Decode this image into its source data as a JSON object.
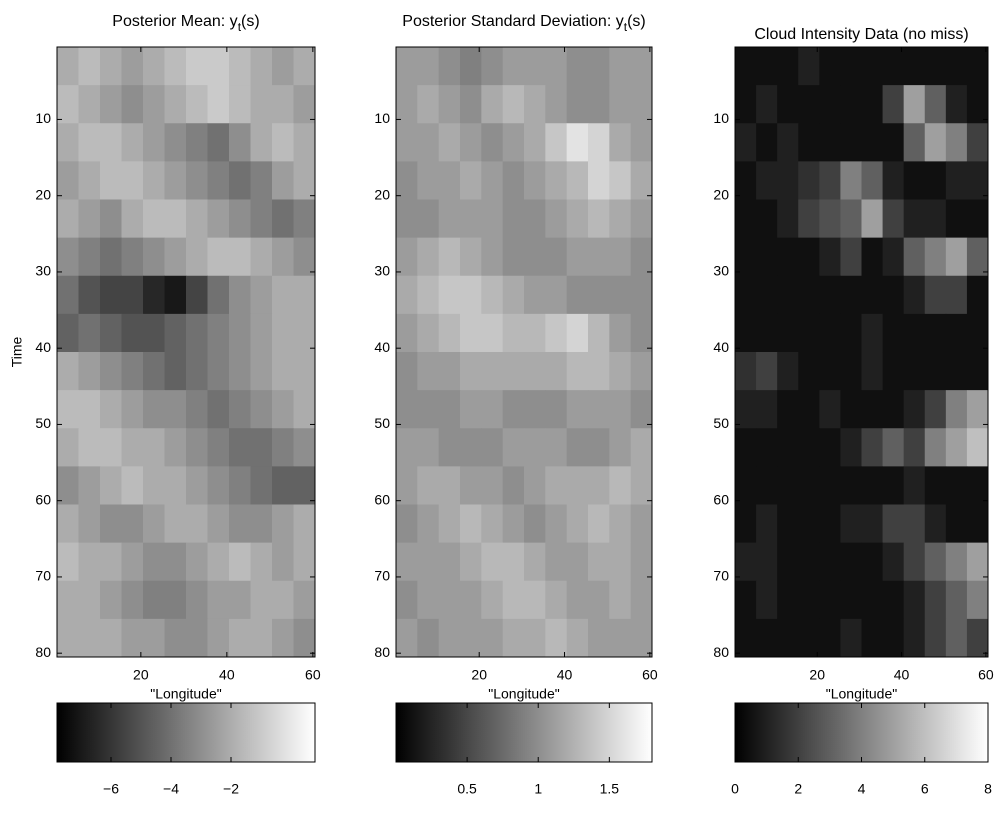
{
  "chart_data": [
    {
      "type": "heatmap",
      "title": "Posterior Mean: y",
      "title_subscript": "t",
      "title_suffix": "(s)",
      "xlabel": "\"Longitude\"",
      "ylabel": "Time",
      "colormap": "gray",
      "x": [
        3,
        8,
        13,
        18,
        23,
        28,
        33,
        38,
        43,
        48,
        53,
        58
      ],
      "y": [
        3,
        8,
        13,
        18,
        23,
        28,
        33,
        38,
        43,
        48,
        53,
        58,
        63,
        68,
        73,
        78
      ],
      "xlim": [
        0.5,
        60.5
      ],
      "ylim": [
        80.5,
        0.5
      ],
      "xticks": [
        20,
        40,
        60
      ],
      "yticks": [
        10,
        20,
        30,
        40,
        50,
        60,
        70,
        80
      ],
      "clim": [
        -7.8,
        0.8
      ],
      "cticks": [
        {
          "value": -6,
          "label": "−6"
        },
        {
          "value": -4,
          "label": "−4"
        },
        {
          "value": -2,
          "label": "−2"
        }
      ],
      "values": [
        [
          -2,
          -1.5,
          -2,
          -2.5,
          -2,
          -1.5,
          -1,
          -1,
          -1.5,
          -2,
          -2.5,
          -2
        ],
        [
          -1.5,
          -2,
          -2.5,
          -3,
          -2.5,
          -2,
          -1.5,
          -1,
          -1.5,
          -2,
          -2,
          -2.5
        ],
        [
          -2,
          -1.5,
          -1.5,
          -2,
          -2.5,
          -3,
          -3.5,
          -4,
          -3,
          -2,
          -1.5,
          -2
        ],
        [
          -2.5,
          -2,
          -1.5,
          -1.5,
          -2,
          -2.5,
          -3,
          -3.5,
          -4,
          -3.5,
          -2.5,
          -2
        ],
        [
          -2,
          -2.5,
          -3,
          -2,
          -1.5,
          -1.5,
          -2,
          -2.5,
          -3,
          -3.5,
          -4,
          -3.5
        ],
        [
          -3,
          -3.5,
          -4,
          -3.5,
          -3,
          -2.5,
          -2,
          -1.5,
          -1.5,
          -2,
          -2.5,
          -3
        ],
        [
          -4,
          -5,
          -5.5,
          -5.5,
          -6.5,
          -7,
          -5.5,
          -4,
          -3,
          -2.5,
          -2,
          -2
        ],
        [
          -4.5,
          -4,
          -4.5,
          -5,
          -5,
          -4.5,
          -4,
          -3.5,
          -3,
          -2.5,
          -2,
          -2
        ],
        [
          -2,
          -2.5,
          -3,
          -3.5,
          -4,
          -4.5,
          -4,
          -3.5,
          -3,
          -2.5,
          -2,
          -2
        ],
        [
          -1.5,
          -1.5,
          -2,
          -2.5,
          -3,
          -3,
          -3.5,
          -4,
          -3.5,
          -3,
          -2.5,
          -2
        ],
        [
          -2,
          -1.5,
          -1.5,
          -2,
          -2,
          -2.5,
          -3,
          -3.5,
          -4,
          -4,
          -3.5,
          -3
        ],
        [
          -3,
          -2.5,
          -2,
          -1.5,
          -2,
          -2,
          -2.5,
          -3,
          -3.5,
          -4,
          -4.5,
          -4.5
        ],
        [
          -2,
          -2.5,
          -3,
          -3,
          -2.5,
          -2,
          -2,
          -2.5,
          -3,
          -3,
          -2.5,
          -2
        ],
        [
          -1.5,
          -2,
          -2,
          -2.5,
          -3,
          -3,
          -2.5,
          -2,
          -1.5,
          -2,
          -2.5,
          -2
        ],
        [
          -2,
          -2,
          -2.5,
          -3,
          -3.5,
          -3.5,
          -3,
          -2.5,
          -2.5,
          -2,
          -2,
          -2.5
        ],
        [
          -2,
          -2,
          -2,
          -2.5,
          -2.5,
          -3,
          -3,
          -2.5,
          -2,
          -2,
          -2.5,
          -3
        ]
      ]
    },
    {
      "type": "heatmap",
      "title": "Posterior Standard Deviation: y",
      "title_subscript": "t",
      "title_suffix": "(s)",
      "xlabel": "\"Longitude\"",
      "colormap": "gray",
      "x": [
        3,
        8,
        13,
        18,
        23,
        28,
        33,
        38,
        43,
        48,
        53,
        58
      ],
      "y": [
        3,
        8,
        13,
        18,
        23,
        28,
        33,
        38,
        43,
        48,
        53,
        58,
        63,
        68,
        73,
        78
      ],
      "xlim": [
        0.5,
        60.5
      ],
      "ylim": [
        80.5,
        0.5
      ],
      "xticks": [
        20,
        40,
        60
      ],
      "yticks": [
        10,
        20,
        30,
        40,
        50,
        60,
        70,
        80
      ],
      "clim": [
        0,
        1.8
      ],
      "cticks": [
        0.5,
        1,
        1.5
      ],
      "values": [
        [
          1.1,
          1.1,
          1.0,
          0.9,
          1.0,
          1.1,
          1.1,
          1.1,
          1.0,
          1.0,
          1.1,
          1.1
        ],
        [
          1.1,
          1.2,
          1.1,
          1.0,
          1.2,
          1.3,
          1.2,
          1.1,
          1.0,
          1.0,
          1.1,
          1.1
        ],
        [
          1.1,
          1.1,
          1.2,
          1.1,
          1.0,
          1.1,
          1.2,
          1.4,
          1.6,
          1.5,
          1.2,
          1.1
        ],
        [
          1.0,
          1.1,
          1.1,
          1.2,
          1.1,
          1.0,
          1.1,
          1.2,
          1.3,
          1.5,
          1.4,
          1.2
        ],
        [
          1.0,
          1.0,
          1.1,
          1.1,
          1.1,
          1.0,
          1.0,
          1.1,
          1.2,
          1.3,
          1.2,
          1.1
        ],
        [
          1.1,
          1.2,
          1.3,
          1.2,
          1.1,
          1.0,
          1.0,
          1.0,
          1.1,
          1.1,
          1.1,
          1.0
        ],
        [
          1.2,
          1.3,
          1.4,
          1.4,
          1.3,
          1.2,
          1.1,
          1.1,
          1.0,
          1.0,
          1.0,
          1.0
        ],
        [
          1.1,
          1.2,
          1.3,
          1.4,
          1.4,
          1.3,
          1.3,
          1.4,
          1.5,
          1.3,
          1.1,
          1.0
        ],
        [
          1.0,
          1.1,
          1.1,
          1.2,
          1.2,
          1.2,
          1.2,
          1.2,
          1.3,
          1.3,
          1.2,
          1.1
        ],
        [
          1.0,
          1.0,
          1.0,
          1.1,
          1.1,
          1.0,
          1.0,
          1.0,
          1.1,
          1.1,
          1.1,
          1.0
        ],
        [
          1.1,
          1.1,
          1.0,
          1.0,
          1.0,
          1.1,
          1.1,
          1.1,
          1.0,
          1.0,
          1.1,
          1.2
        ],
        [
          1.1,
          1.2,
          1.2,
          1.1,
          1.1,
          1.0,
          1.1,
          1.2,
          1.2,
          1.2,
          1.3,
          1.2
        ],
        [
          1.0,
          1.1,
          1.2,
          1.3,
          1.2,
          1.1,
          1.0,
          1.1,
          1.2,
          1.3,
          1.2,
          1.1
        ],
        [
          1.1,
          1.1,
          1.1,
          1.2,
          1.3,
          1.3,
          1.2,
          1.1,
          1.1,
          1.2,
          1.2,
          1.1
        ],
        [
          1.0,
          1.1,
          1.1,
          1.1,
          1.2,
          1.3,
          1.3,
          1.2,
          1.1,
          1.1,
          1.2,
          1.1
        ],
        [
          1.1,
          1.0,
          1.1,
          1.1,
          1.1,
          1.2,
          1.2,
          1.3,
          1.2,
          1.1,
          1.1,
          1.1
        ]
      ]
    },
    {
      "type": "heatmap",
      "title": "Cloud Intensity Data (no miss)",
      "xlabel": "\"Longitude\"",
      "colormap": "gray",
      "x": [
        3,
        8,
        13,
        18,
        23,
        28,
        33,
        38,
        43,
        48,
        53,
        58
      ],
      "y": [
        3,
        8,
        13,
        18,
        23,
        28,
        33,
        38,
        43,
        48,
        53,
        58,
        63,
        68,
        73,
        78
      ],
      "xlim": [
        0.5,
        60.5
      ],
      "ylim": [
        80.5,
        0.5
      ],
      "xticks": [
        20,
        40,
        60
      ],
      "yticks": [
        10,
        20,
        30,
        40,
        50,
        60,
        70,
        80
      ],
      "clim": [
        0,
        8
      ],
      "cticks": [
        0,
        2,
        4,
        6,
        8
      ],
      "values": [
        [
          0.5,
          0.5,
          0.5,
          1,
          0.5,
          0.5,
          0.5,
          0.5,
          0.5,
          0.5,
          0.5,
          0.5
        ],
        [
          0.5,
          1,
          0.5,
          0.5,
          0.5,
          0.5,
          0.5,
          2,
          5,
          3,
          1,
          0.5
        ],
        [
          1,
          0.5,
          1,
          0.5,
          0.5,
          0.5,
          0.5,
          0.5,
          3,
          5,
          4,
          2
        ],
        [
          0.5,
          1,
          1,
          1.5,
          2,
          4,
          3,
          1,
          0.5,
          0.5,
          1,
          1
        ],
        [
          0.5,
          0.5,
          1,
          2,
          2.5,
          3,
          5,
          2,
          1,
          1,
          0.5,
          0.5
        ],
        [
          0.5,
          0.5,
          0.5,
          0.5,
          1,
          2,
          0.5,
          1,
          3,
          4,
          5,
          3
        ],
        [
          0.5,
          0.5,
          0.5,
          0.5,
          0.5,
          0.5,
          0.5,
          0.5,
          1,
          2,
          2,
          0.5
        ],
        [
          0.5,
          0.5,
          0.5,
          0.5,
          0.5,
          0.5,
          1,
          0.5,
          0.5,
          0.5,
          0.5,
          0.5
        ],
        [
          1.5,
          2,
          1,
          0.5,
          0.5,
          0.5,
          1,
          0.5,
          0.5,
          0.5,
          0.5,
          0.5
        ],
        [
          1,
          1,
          0.5,
          0.5,
          1,
          0.5,
          0.5,
          0.5,
          1,
          2,
          4,
          5
        ],
        [
          0.5,
          0.5,
          0.5,
          0.5,
          0.5,
          1,
          2,
          3,
          2,
          4,
          5,
          6
        ],
        [
          0.5,
          0.5,
          0.5,
          0.5,
          0.5,
          0.5,
          0.5,
          0.5,
          1,
          0.5,
          0.5,
          0.5
        ],
        [
          0.5,
          1,
          0.5,
          0.5,
          0.5,
          1,
          1,
          2,
          2,
          1,
          0.5,
          0.5
        ],
        [
          1,
          1,
          0.5,
          0.5,
          0.5,
          0.5,
          0.5,
          1,
          2,
          3,
          4,
          5
        ],
        [
          0.5,
          1,
          0.5,
          0.5,
          0.5,
          0.5,
          0.5,
          0.5,
          1,
          2,
          3,
          4
        ],
        [
          0.5,
          0.5,
          0.5,
          0.5,
          0.5,
          1,
          0.5,
          0.5,
          1,
          2,
          3,
          2
        ]
      ]
    }
  ]
}
